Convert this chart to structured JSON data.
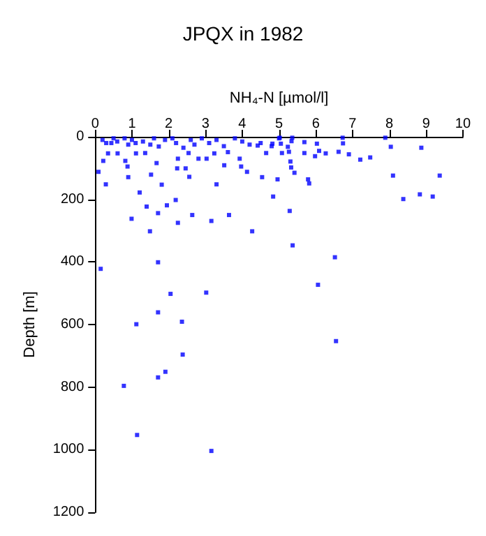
{
  "chart_data": {
    "type": "scatter",
    "title": "JPQX in 1982",
    "xlabel": "NH₄-N [µmol/l]",
    "ylabel": "Depth [m]",
    "x": [
      0.2,
      0.3,
      0.5,
      0.6,
      0.8,
      0.9,
      1.0,
      1.3,
      1.5,
      1.6,
      1.9,
      2.1,
      2.2,
      2.4,
      2.6,
      2.7,
      2.9,
      3.1,
      3.3,
      3.5,
      3.8,
      4.0,
      4.2,
      4.5,
      4.8,
      5.0,
      0.09,
      0.29,
      1.21,
      0.99,
      1.4,
      1.71,
      1.95,
      2.19,
      2.25,
      2.64,
      3.16,
      3.64,
      3.3,
      4.84,
      4.13,
      4.54,
      2.56,
      1.81,
      1.52,
      0.9,
      0.88,
      0.82,
      0.22,
      0.35,
      0.61,
      1.11,
      1.67,
      2.23,
      2.46,
      2.25,
      2.81,
      3.03,
      3.51,
      3.93,
      3.61,
      3.24,
      3.97,
      4.65,
      4.42,
      2.54,
      1.36,
      1.73,
      1.1,
      0.44,
      5.02,
      5.36,
      4.82,
      5.05,
      5.24,
      5.08,
      5.27,
      5.34,
      5.69,
      5.69,
      6.03,
      6.09,
      5.98,
      6.27,
      6.62,
      6.73,
      6.74,
      6.9,
      7.21,
      7.48,
      7.89,
      8.04,
      8.87,
      5.31,
      5.33,
      5.42,
      4.96,
      5.79,
      5.82,
      8.1,
      9.37,
      8.38,
      8.83,
      9.18,
      5.29,
      0.15,
      1.49,
      4.27,
      5.37,
      6.52,
      1.71,
      2.05,
      3.02,
      6.06,
      1.71,
      1.12,
      2.36,
      6.55,
      2.38,
      1.91,
      1.71,
      0.78,
      1.14,
      3.16
    ],
    "values": [
      10,
      20,
      5,
      15,
      5,
      25,
      10,
      15,
      25,
      5,
      10,
      5,
      20,
      35,
      10,
      25,
      5,
      20,
      10,
      30,
      5,
      15,
      25,
      20,
      30,
      5,
      112,
      152,
      178,
      262,
      223,
      244,
      219,
      202,
      275,
      250,
      269,
      250,
      152,
      191,
      112,
      129,
      128,
      153,
      121,
      129,
      95,
      77,
      77,
      53,
      53,
      53,
      84,
      101,
      101,
      70,
      70,
      70,
      91,
      70,
      49,
      53,
      95,
      52,
      28,
      52,
      52,
      31,
      20,
      20,
      3,
      3,
      22,
      22,
      32,
      52,
      48,
      14,
      17,
      52,
      22,
      45,
      62,
      53,
      48,
      3,
      21,
      56,
      73,
      66,
      3,
      32,
      35,
      79,
      98,
      115,
      136,
      136,
      149,
      124,
      124,
      199,
      184,
      191,
      237,
      422,
      302,
      302,
      347,
      385,
      401,
      502,
      498,
      473,
      561,
      599,
      591,
      653,
      696,
      751,
      769,
      796,
      953,
      1004
    ],
    "color": "#0000ff",
    "marker": "square",
    "xlim": [
      0,
      10
    ],
    "xticks": [
      0,
      1,
      2,
      3,
      4,
      5,
      6,
      7,
      8,
      9,
      10
    ],
    "ylim": [
      1200,
      0
    ],
    "yticks": [
      0,
      200,
      400,
      600,
      800,
      1000,
      1200
    ]
  }
}
